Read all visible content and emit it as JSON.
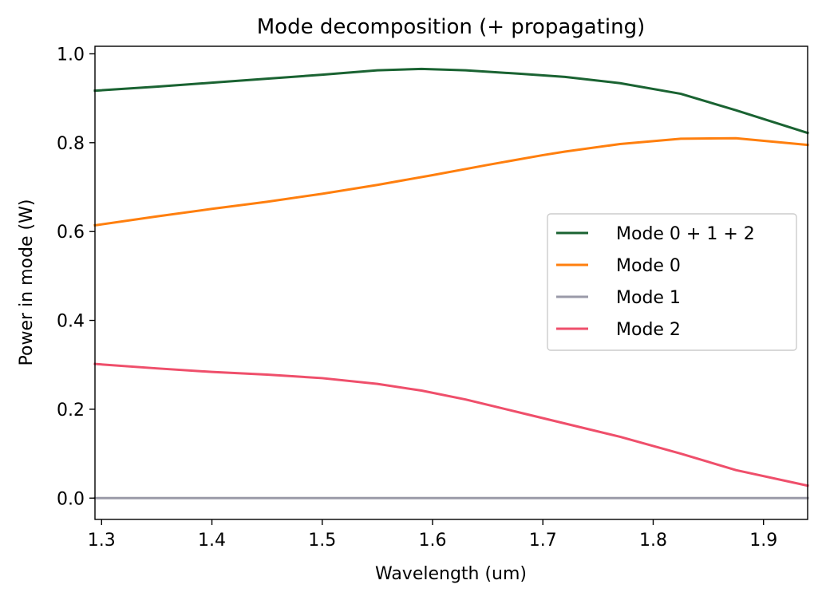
{
  "chart_data": {
    "type": "line",
    "title": "Mode decomposition (+ propagating)",
    "xlabel": "Wavelength (um)",
    "ylabel": "Power in mode (W)",
    "xlim": [
      1.294,
      1.94
    ],
    "ylim": [
      -0.048,
      1.017
    ],
    "xticks": [
      1.3,
      1.4,
      1.5,
      1.6,
      1.7,
      1.8,
      1.9
    ],
    "xtick_labels": [
      "1.3",
      "1.4",
      "1.5",
      "1.6",
      "1.7",
      "1.8",
      "1.9"
    ],
    "yticks": [
      0.0,
      0.2,
      0.4,
      0.6,
      0.8,
      1.0
    ],
    "ytick_labels": [
      "0.0",
      "0.2",
      "0.4",
      "0.6",
      "0.8",
      "1.0"
    ],
    "grid": false,
    "legend_position": "center-right",
    "series": [
      {
        "name": "Mode 0 + 1 + 2",
        "color": "#1a6332",
        "x": [
          1.294,
          1.35,
          1.4,
          1.45,
          1.5,
          1.55,
          1.59,
          1.63,
          1.68,
          1.72,
          1.77,
          1.825,
          1.875,
          1.94
        ],
        "y": [
          0.917,
          0.926,
          0.935,
          0.944,
          0.953,
          0.963,
          0.966,
          0.963,
          0.955,
          0.948,
          0.934,
          0.91,
          0.873,
          0.822
        ]
      },
      {
        "name": "Mode 0",
        "color": "#ff7f0e",
        "x": [
          1.294,
          1.35,
          1.4,
          1.45,
          1.5,
          1.55,
          1.6,
          1.65,
          1.7,
          1.72,
          1.77,
          1.825,
          1.875,
          1.94
        ],
        "y": [
          0.614,
          0.634,
          0.651,
          0.667,
          0.685,
          0.705,
          0.727,
          0.75,
          0.772,
          0.78,
          0.797,
          0.809,
          0.81,
          0.795
        ]
      },
      {
        "name": "Mode 1",
        "color": "#9a9aa8",
        "x": [
          1.294,
          1.94
        ],
        "y": [
          0.0,
          0.0
        ]
      },
      {
        "name": "Mode 2",
        "color": "#ef4f6b",
        "x": [
          1.294,
          1.35,
          1.4,
          1.45,
          1.5,
          1.55,
          1.59,
          1.63,
          1.68,
          1.72,
          1.77,
          1.825,
          1.875,
          1.94
        ],
        "y": [
          0.302,
          0.292,
          0.284,
          0.278,
          0.27,
          0.257,
          0.242,
          0.222,
          0.192,
          0.168,
          0.138,
          0.1,
          0.063,
          0.028
        ]
      }
    ]
  }
}
